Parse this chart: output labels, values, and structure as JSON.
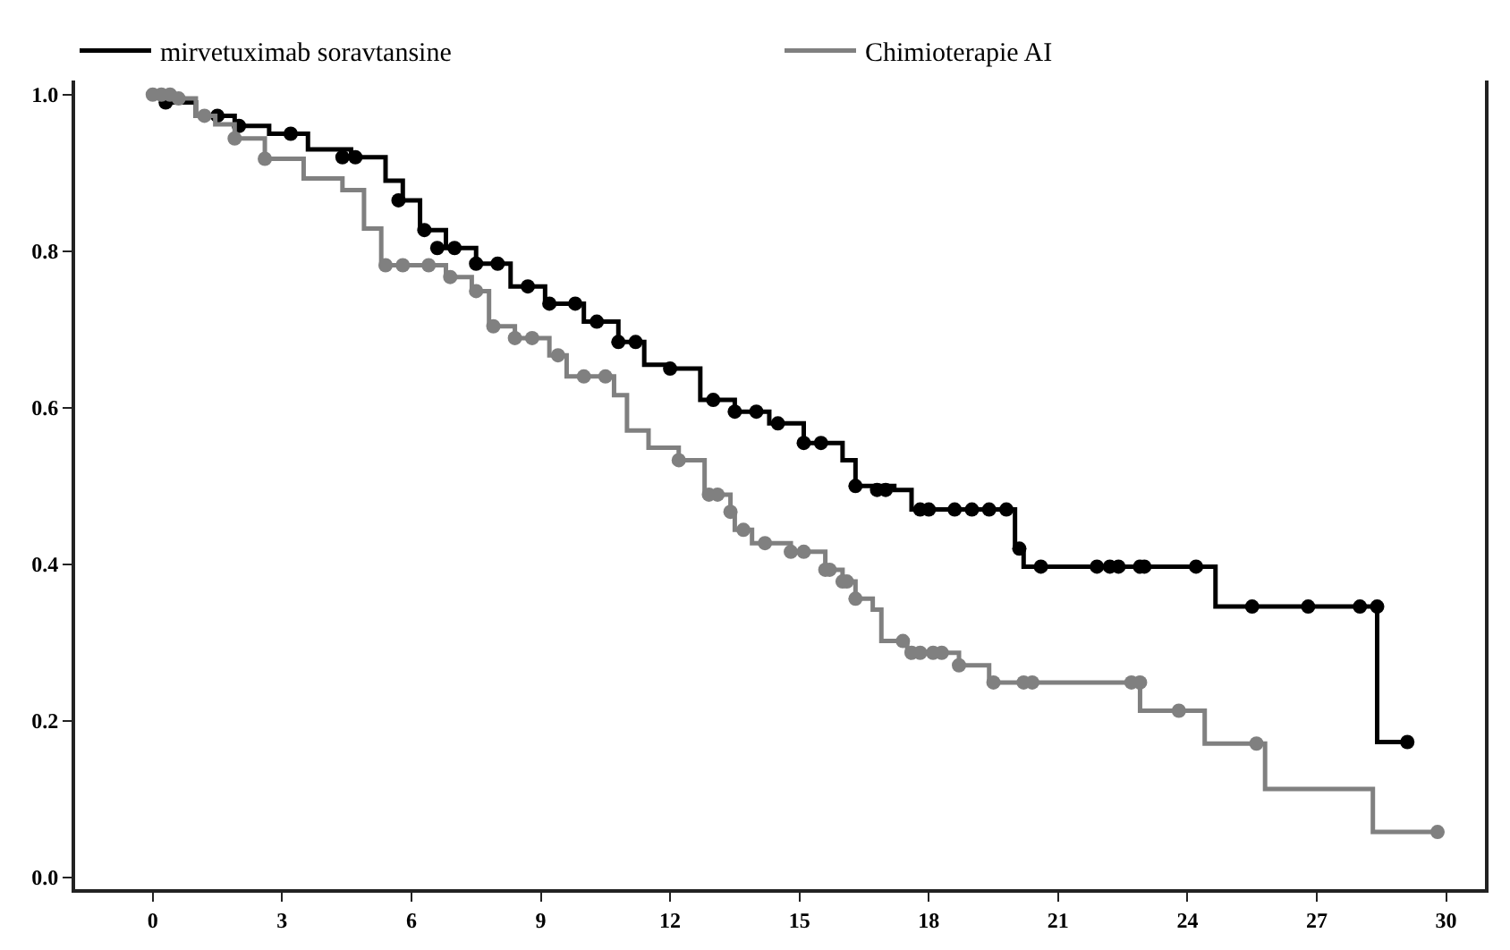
{
  "chart_data": {
    "type": "step",
    "xlim": [
      -1.8,
      30.9
    ],
    "xticks": [
      0,
      3,
      6,
      9,
      12,
      15,
      18,
      21,
      24,
      27,
      30
    ],
    "ylim": [
      -0.015,
      1.018
    ],
    "yticks": [
      {
        "value": 0,
        "label": "0.0"
      },
      0.2,
      0.4,
      0.6,
      0.8,
      {
        "value": 1,
        "label": "1.0"
      }
    ],
    "grid": false,
    "legend": "top",
    "series": [
      {
        "name": "mirvetuximab soravtansine",
        "marker": "none",
        "color": "#000000",
        "x": [
          0,
          0.4,
          1.0,
          1.9,
          2.7,
          3.6,
          4.6,
          5.4,
          5.8,
          6.2,
          6.8,
          7.5,
          8.3,
          9.1,
          10.0,
          10.8,
          11.4,
          12.0,
          12.7,
          13.5,
          14.3,
          15.1,
          16.0,
          16.3,
          17.2,
          17.6,
          19.9,
          20.0,
          20.2,
          24.65,
          28.4,
          29.1
        ],
        "values": [
          1.0,
          0.99,
          0.973,
          0.96,
          0.95,
          0.93,
          0.92,
          0.89,
          0.865,
          0.827,
          0.804,
          0.784,
          0.755,
          0.733,
          0.71,
          0.684,
          0.655,
          0.65,
          0.61,
          0.595,
          0.58,
          0.555,
          0.533,
          0.5,
          0.495,
          0.47,
          0.47,
          0.42,
          0.397,
          0.346,
          0.173,
          0.173
        ]
      },
      {
        "type": "scatter",
        "marker": "circle",
        "color": "#000000",
        "x": [
          0.3,
          1.5,
          2.0,
          3.2,
          4.4,
          4.7,
          5.7,
          6.3,
          6.6,
          7.0,
          7.5,
          8.0,
          8.7,
          9.2,
          9.8,
          10.3,
          10.8,
          11.2,
          12.0,
          13.0,
          13.5,
          14.0,
          14.5,
          15.1,
          15.5,
          16.3,
          16.8,
          17.0,
          17.8,
          18.0,
          18.6,
          19.0,
          19.4,
          19.8,
          20.1,
          20.6,
          21.9,
          22.2,
          22.4,
          22.9,
          23.0,
          24.2,
          25.5,
          26.8,
          28.0,
          28.4,
          29.1
        ],
        "values": [
          0.99,
          0.973,
          0.96,
          0.95,
          0.92,
          0.92,
          0.865,
          0.827,
          0.804,
          0.804,
          0.784,
          0.784,
          0.755,
          0.733,
          0.733,
          0.71,
          0.684,
          0.684,
          0.65,
          0.61,
          0.595,
          0.595,
          0.58,
          0.555,
          0.555,
          0.5,
          0.495,
          0.495,
          0.47,
          0.47,
          0.47,
          0.47,
          0.47,
          0.47,
          0.42,
          0.397,
          0.397,
          0.397,
          0.397,
          0.397,
          0.397,
          0.397,
          0.346,
          0.346,
          0.346,
          0.346,
          0.173
        ]
      },
      {
        "name": "Chimioterapie AI",
        "marker": "none",
        "color": "#808080",
        "x": [
          0,
          0.6,
          1.0,
          1.45,
          1.9,
          2.6,
          3.5,
          4.4,
          4.9,
          5.3,
          6.0,
          6.8,
          7.4,
          7.8,
          8.4,
          9.2,
          9.6,
          10.7,
          11.0,
          11.5,
          12.2,
          12.8,
          13.4,
          13.5,
          13.9,
          14.8,
          15.6,
          16.0,
          16.3,
          16.7,
          16.9,
          17.5,
          18.7,
          19.4,
          22.9,
          24.4,
          25.8,
          28.3,
          29.9
        ],
        "values": [
          1.0,
          0.995,
          0.973,
          0.962,
          0.944,
          0.918,
          0.893,
          0.878,
          0.829,
          0.782,
          0.782,
          0.767,
          0.749,
          0.704,
          0.689,
          0.667,
          0.64,
          0.616,
          0.571,
          0.549,
          0.533,
          0.489,
          0.467,
          0.444,
          0.427,
          0.416,
          0.393,
          0.378,
          0.356,
          0.342,
          0.302,
          0.287,
          0.271,
          0.249,
          0.213,
          0.171,
          0.113,
          0.058,
          0.058
        ]
      },
      {
        "type": "scatter",
        "marker": "circle",
        "color": "#808080",
        "x": [
          0.0,
          0.2,
          0.4,
          0.6,
          1.2,
          1.9,
          2.6,
          5.4,
          5.8,
          6.4,
          6.9,
          7.5,
          7.9,
          8.4,
          8.8,
          9.4,
          10.0,
          10.5,
          12.2,
          12.9,
          13.1,
          13.4,
          13.7,
          14.2,
          14.8,
          15.1,
          15.6,
          15.7,
          16.0,
          16.1,
          16.3,
          17.4,
          17.6,
          17.8,
          18.1,
          18.3,
          18.7,
          19.5,
          20.2,
          20.4,
          22.7,
          22.9,
          23.8,
          25.6,
          29.8
        ],
        "values": [
          1.0,
          1.0,
          1.0,
          0.995,
          0.973,
          0.944,
          0.918,
          0.782,
          0.782,
          0.782,
          0.767,
          0.749,
          0.704,
          0.689,
          0.689,
          0.667,
          0.64,
          0.64,
          0.533,
          0.489,
          0.489,
          0.467,
          0.444,
          0.427,
          0.416,
          0.416,
          0.393,
          0.393,
          0.378,
          0.378,
          0.356,
          0.302,
          0.287,
          0.287,
          0.287,
          0.287,
          0.271,
          0.249,
          0.249,
          0.249,
          0.249,
          0.249,
          0.213,
          0.171,
          0.058
        ]
      }
    ]
  }
}
